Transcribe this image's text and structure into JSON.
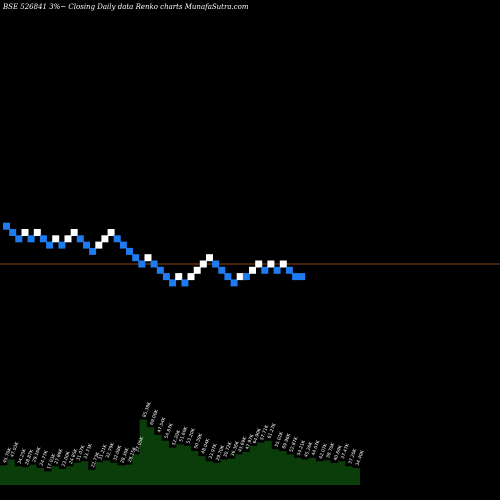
{
  "header": {
    "title": "BSE 526841 3%~  Closing Daily data  Renko  charts MunafaSutra.com"
  },
  "colors": {
    "up": "#ffffff",
    "down": "#1e7bf0",
    "ref_line": "#8b4513",
    "volume_fill": "#0b3d0b",
    "background": "#000000"
  },
  "chart_data": {
    "type": "renko",
    "title": "BSE 526841 3%~  Closing Daily data  Renko  charts MunafaSutra.com",
    "brick_percent": 3,
    "reference_level": 0,
    "bricks": [
      {
        "dir": "down",
        "level": 6
      },
      {
        "dir": "down",
        "level": 5
      },
      {
        "dir": "down",
        "level": 4
      },
      {
        "dir": "up",
        "level": 5
      },
      {
        "dir": "down",
        "level": 4
      },
      {
        "dir": "up",
        "level": 5
      },
      {
        "dir": "down",
        "level": 4
      },
      {
        "dir": "down",
        "level": 3
      },
      {
        "dir": "up",
        "level": 4
      },
      {
        "dir": "down",
        "level": 3
      },
      {
        "dir": "up",
        "level": 4
      },
      {
        "dir": "up",
        "level": 5
      },
      {
        "dir": "down",
        "level": 4
      },
      {
        "dir": "down",
        "level": 3
      },
      {
        "dir": "down",
        "level": 2
      },
      {
        "dir": "up",
        "level": 3
      },
      {
        "dir": "up",
        "level": 4
      },
      {
        "dir": "up",
        "level": 5
      },
      {
        "dir": "down",
        "level": 4
      },
      {
        "dir": "down",
        "level": 3
      },
      {
        "dir": "down",
        "level": 2
      },
      {
        "dir": "down",
        "level": 1
      },
      {
        "dir": "down",
        "level": 0
      },
      {
        "dir": "up",
        "level": 1
      },
      {
        "dir": "down",
        "level": 0
      },
      {
        "dir": "down",
        "level": -1
      },
      {
        "dir": "down",
        "level": -2
      },
      {
        "dir": "down",
        "level": -3
      },
      {
        "dir": "up",
        "level": -2
      },
      {
        "dir": "down",
        "level": -3
      },
      {
        "dir": "up",
        "level": -2
      },
      {
        "dir": "up",
        "level": -1
      },
      {
        "dir": "up",
        "level": 0
      },
      {
        "dir": "up",
        "level": 1
      },
      {
        "dir": "down",
        "level": 0
      },
      {
        "dir": "down",
        "level": -1
      },
      {
        "dir": "down",
        "level": -2
      },
      {
        "dir": "down",
        "level": -3
      },
      {
        "dir": "up",
        "level": -2
      },
      {
        "dir": "down",
        "level": -2
      },
      {
        "dir": "up",
        "level": -1
      },
      {
        "dir": "up",
        "level": 0
      },
      {
        "dir": "down",
        "level": -1
      },
      {
        "dir": "up",
        "level": 0
      },
      {
        "dir": "down",
        "level": -1
      },
      {
        "dir": "up",
        "level": 0
      },
      {
        "dir": "down",
        "level": -1
      },
      {
        "dir": "down",
        "level": -2
      },
      {
        "dir": "down",
        "level": -2
      }
    ],
    "volume_labels": [
      "45.70K",
      "47.03K",
      "34.25K",
      "28.87K",
      "29.16K",
      "24.77K",
      "17.03K",
      "27.86K",
      "23.00K",
      "24.85K",
      "31.07K",
      "33.73K",
      "22.73K",
      "31.21K",
      "32.79K",
      "32.08K",
      "28.30K",
      "28.15K",
      "37.05K",
      "85.38K",
      "69.00K",
      "47.54K",
      "54.87K",
      "52.20K",
      "51.69K",
      "53.20K",
      "50.39K",
      "48.04K",
      "33.97K",
      "29.70K",
      "30.72K",
      "36.36K",
      "43.69K",
      "47.97K",
      "64.90K",
      "57.71K",
      "61.27K",
      "55.02K",
      "69.96K",
      "52.87K",
      "54.21K",
      "45.26K",
      "44.07K",
      "42.07K",
      "38.70K",
      "40.69K",
      "37.47K",
      "37.20K",
      "34.40K"
    ],
    "volume_values": [
      23,
      30,
      22,
      21,
      24,
      20,
      16,
      22,
      19,
      22,
      26,
      28,
      18,
      27,
      29,
      26,
      23,
      24,
      36,
      77,
      68,
      59,
      52,
      44,
      48,
      46,
      40,
      34,
      28,
      26,
      30,
      31,
      36,
      39,
      46,
      50,
      52,
      42,
      40,
      36,
      32,
      30,
      32,
      28,
      29,
      26,
      28,
      22,
      20
    ]
  }
}
